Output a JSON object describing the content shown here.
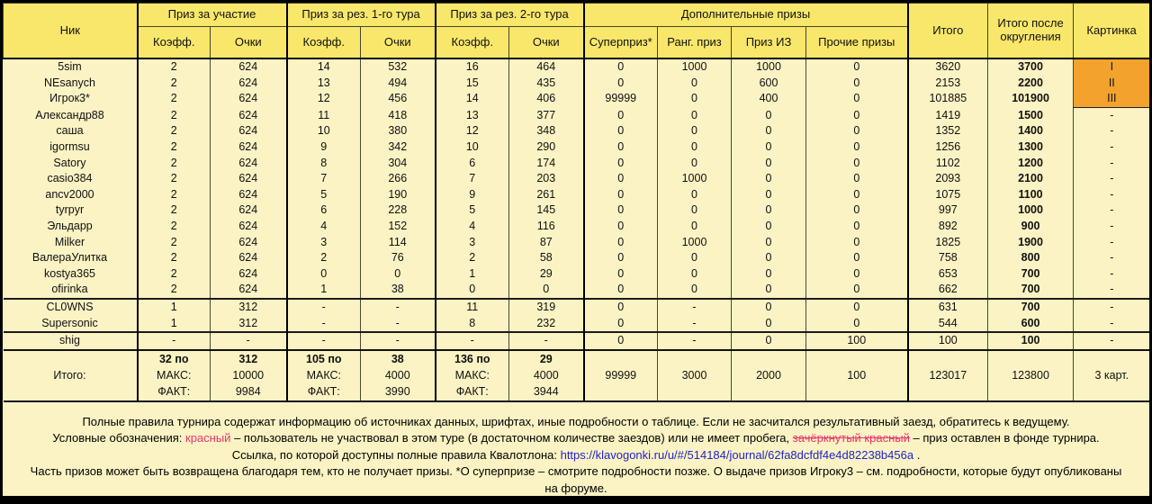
{
  "colors": {
    "header_bg": "#f9e76b",
    "body_bg": "#fbf3c4",
    "picture_orange": "#f3a32d",
    "rounded_teal": "#156e5c",
    "legend_red": "#e8356d",
    "dash_red": "#f0789b",
    "link_blue": "#2323cc"
  },
  "table": {
    "header": {
      "nick": "Ник",
      "participation": "Приз за участие",
      "tour1": "Приз за рез. 1-го тура",
      "tour2": "Приз за рез. 2-го тура",
      "additional": "Дополнительные призы",
      "coeff": "Коэфф.",
      "points": "Очки",
      "superprize": "Суперприз*",
      "rank_prize": "Ранг. приз",
      "iz_prize": "Приз ИЗ",
      "other_prizes": "Прочие призы",
      "total": "Итого",
      "total_rounded": "Итого после округления",
      "picture": "Картинка"
    },
    "rows": [
      {
        "nick": "5sim",
        "cells": [
          "2",
          "624",
          "14",
          "532",
          "16",
          "464",
          "0",
          "1000",
          "1000",
          "0",
          "3620"
        ],
        "rounded": "3700",
        "picture": "I",
        "picture_orange": true
      },
      {
        "nick": "NEsanych",
        "cells": [
          "2",
          "624",
          "13",
          "494",
          "15",
          "435",
          "0",
          "0",
          "600",
          "0",
          "2153"
        ],
        "rounded": "2200",
        "picture": "II",
        "picture_orange": true
      },
      {
        "nick": "Игрок3*",
        "cells": [
          "2",
          "624",
          "12",
          "456",
          "14",
          "406",
          "99999",
          "0",
          "400",
          "0",
          "101885"
        ],
        "rounded": "101900",
        "picture": "III",
        "picture_orange": true
      },
      {
        "nick": "Александр88",
        "cells": [
          "2",
          "624",
          "11",
          "418",
          "13",
          "377",
          "0",
          "0",
          "0",
          "0",
          "1419"
        ],
        "rounded": "1500",
        "picture": "-"
      },
      {
        "nick": "саша",
        "cells": [
          "2",
          "624",
          "10",
          "380",
          "12",
          "348",
          "0",
          "0",
          "0",
          "0",
          "1352"
        ],
        "rounded": "1400",
        "picture": "-"
      },
      {
        "nick": "igormsu",
        "cells": [
          "2",
          "624",
          "9",
          "342",
          "10",
          "290",
          "0",
          "0",
          "0",
          "0",
          "1256"
        ],
        "rounded": "1300",
        "picture": "-"
      },
      {
        "nick": "Satory",
        "cells": [
          "2",
          "624",
          "8",
          "304",
          "6",
          "174",
          "0",
          "0",
          "0",
          "0",
          "1102"
        ],
        "rounded": "1200",
        "picture": "-"
      },
      {
        "nick": "casio384",
        "cells": [
          "2",
          "624",
          "7",
          "266",
          "7",
          "203",
          "0",
          "1000",
          "0",
          "0",
          "2093"
        ],
        "rounded": "2100",
        "picture": "-"
      },
      {
        "nick": "ancv2000",
        "cells": [
          "2",
          "624",
          "5",
          "190",
          "9",
          "261",
          "0",
          "0",
          "0",
          "0",
          "1075"
        ],
        "rounded": "1100",
        "picture": "-"
      },
      {
        "nick": "tyrpyr",
        "cells": [
          "2",
          "624",
          "6",
          "228",
          "5",
          "145",
          "0",
          "0",
          "0",
          "0",
          "997"
        ],
        "rounded": "1000",
        "picture": "-"
      },
      {
        "nick": "Эльдарр",
        "cells": [
          "2",
          "624",
          "4",
          "152",
          "4",
          "116",
          "0",
          "0",
          "0",
          "0",
          "892"
        ],
        "rounded": "900",
        "picture": "-"
      },
      {
        "nick": "Milker",
        "cells": [
          "2",
          "624",
          "3",
          "114",
          "3",
          "87",
          "0",
          "1000",
          "0",
          "0",
          "1825"
        ],
        "rounded": "1900",
        "picture": "-"
      },
      {
        "nick": "ВалераУлитка",
        "cells": [
          "2",
          "624",
          "2",
          "76",
          "2",
          "58",
          "0",
          "0",
          "0",
          "0",
          "758"
        ],
        "rounded": "800",
        "picture": "-"
      },
      {
        "nick": "kostya365",
        "cells": [
          "2",
          "624",
          "0",
          "0",
          "1",
          "29",
          "0",
          "0",
          "0",
          "0",
          "653"
        ],
        "rounded": "700",
        "picture": "-"
      },
      {
        "nick": "ofirinka",
        "cells": [
          "2",
          "624",
          "1",
          "38",
          "0",
          "0",
          "0",
          "0",
          "0",
          "0",
          "662"
        ],
        "rounded": "700",
        "picture": "-"
      },
      {
        "nick": "CL0WNS",
        "cells": [
          "1",
          "312",
          "-",
          "-",
          "11",
          "319",
          "0",
          "-",
          "0",
          "0",
          "631"
        ],
        "rounded": "700",
        "picture": "-",
        "red": [
          2,
          3
        ],
        "sep_top": true
      },
      {
        "nick": "Supersonic",
        "cells": [
          "1",
          "312",
          "-",
          "-",
          "8",
          "232",
          "0",
          "-",
          "0",
          "0",
          "544"
        ],
        "rounded": "600",
        "picture": "-",
        "red": [
          2,
          3
        ]
      },
      {
        "nick": "shig",
        "cells": [
          "-",
          "-",
          "-",
          "-",
          "-",
          "-",
          "0",
          "-",
          "0",
          "100",
          "100"
        ],
        "rounded": "100",
        "picture": "-",
        "red": [
          0,
          1,
          2,
          3,
          4,
          5
        ],
        "sep_top": true
      }
    ],
    "summary": {
      "label": "Итого:",
      "max_label": "МАКС:",
      "fact_label": "ФАКТ:",
      "participation": {
        "count": "32 по",
        "per": "312",
        "max": "10000",
        "fact": "9984"
      },
      "tour1": {
        "count": "105 по",
        "per": "38",
        "max": "4000",
        "fact": "3990"
      },
      "tour2": {
        "count": "136 по",
        "per": "29",
        "max": "4000",
        "fact": "3944"
      },
      "superprize": "99999",
      "rank_prize": "3000",
      "iz_prize": "2000",
      "other_prizes": "100",
      "total": "123017",
      "total_rounded": "123800",
      "picture": "3 карт."
    }
  },
  "footer": {
    "lines": [
      [
        {
          "t": "Полные правила турнира содержат информацию об источниках данных, шрифтах, иные подробности о таблице. Если не засчитался результативный заезд, обратитесь к ведущему."
        }
      ],
      [
        {
          "t": "Условные обозначения: "
        },
        {
          "t": "красный",
          "c": "red"
        },
        {
          "t": " – пользователь не участвовал в этом туре (в достаточном количестве заездов) или не имеет пробега, "
        },
        {
          "t": "зачёркнутый красный",
          "c": "red",
          "s": true
        },
        {
          "t": " – приз оставлен в фонде турнира."
        }
      ],
      [
        {
          "t": "Ссылка, по которой доступны полные правила Квалотлона: "
        },
        {
          "t": "https://klavogonki.ru/u/#/514184/journal/62fa8dcfdf4e4d82238b456a",
          "c": "link"
        },
        {
          "t": " ."
        }
      ],
      [
        {
          "t": "Часть призов может быть возвращена благодаря тем, кто не получает призы. *О суперпризе – смотрите подробности позже. О выдаче призов Игроку3 – см. подробности, которые будут опубликованы на форуме."
        }
      ]
    ]
  }
}
